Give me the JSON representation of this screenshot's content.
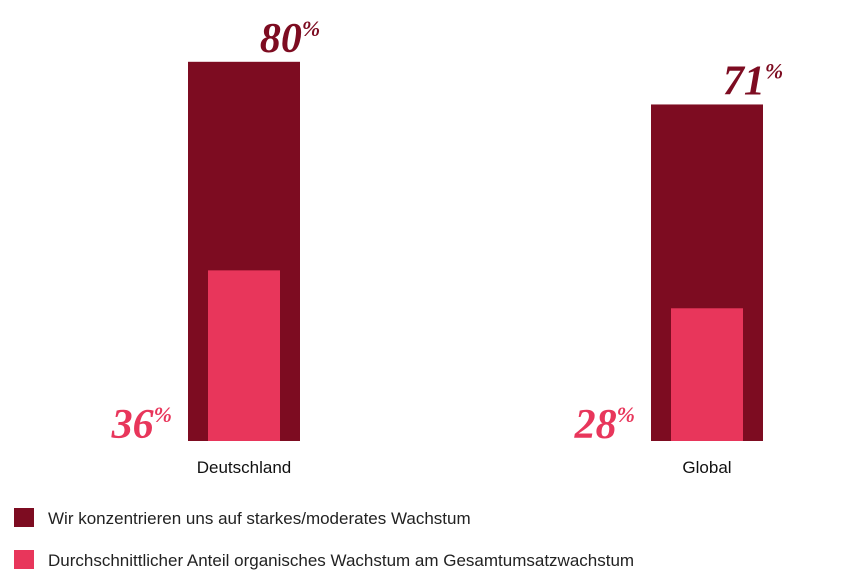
{
  "chart_data": {
    "type": "bar",
    "categories": [
      "Deutschland",
      "Global"
    ],
    "series": [
      {
        "name": "Wir konzentrieren uns auf starkes/moderates Wachstum",
        "color": "#7d0c21",
        "values": [
          80,
          71
        ],
        "value_labels": [
          "80%",
          "71%"
        ]
      },
      {
        "name": "Durchschnittlicher Anteil organisches Wachstum am Gesamtumsatzwachstum",
        "color": "#e8365b",
        "values": [
          36,
          28
        ],
        "value_labels": [
          "36%",
          "28%"
        ]
      }
    ],
    "ylim": [
      0,
      100
    ]
  }
}
